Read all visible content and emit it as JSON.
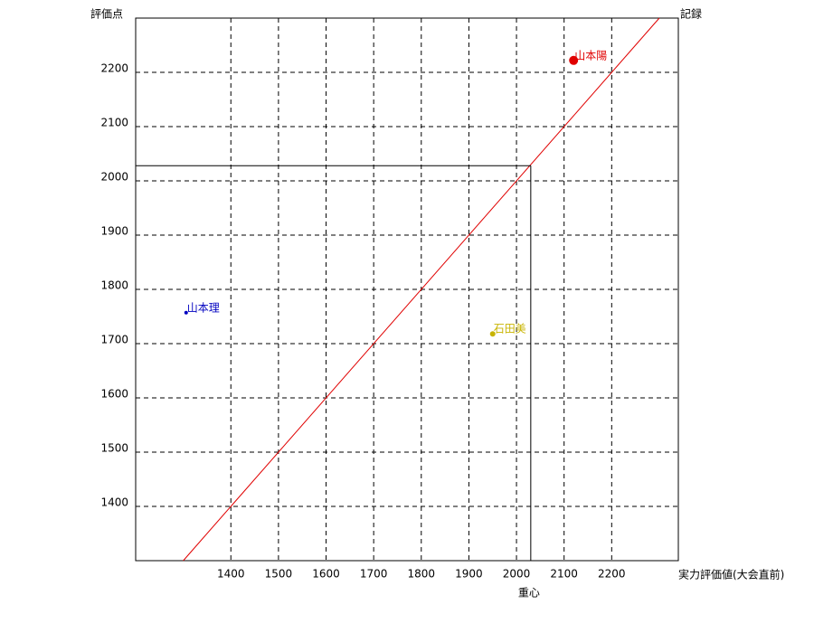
{
  "chart_data": {
    "type": "scatter",
    "ylabel": "評価点",
    "xlabel": "実力評価値(大会直前)",
    "diagonal_label": "記録",
    "diagonal_color": "#e00000",
    "xlim": [
      1200,
      2340
    ],
    "ylim": [
      1300,
      2300
    ],
    "xticks": [
      1400,
      1500,
      1600,
      1700,
      1800,
      1900,
      2000,
      2100,
      2200
    ],
    "yticks": [
      1400,
      1500,
      1600,
      1700,
      1800,
      1900,
      2000,
      2100,
      2200
    ],
    "grid": true,
    "series": [
      {
        "name": "山本陽",
        "color": "#e00000",
        "marker_size": 5,
        "x": [
          2120
        ],
        "values": [
          2222
        ]
      },
      {
        "name": "山本理",
        "color": "#0000c0",
        "marker_size": 2,
        "x": [
          1306
        ],
        "values": [
          1757
        ]
      },
      {
        "name": "石田美",
        "color": "#c8b400",
        "marker_size": 3,
        "x": [
          1950
        ],
        "values": [
          1718
        ]
      }
    ],
    "centroid": {
      "label": "重心",
      "x": 2030,
      "y": 2028
    }
  }
}
